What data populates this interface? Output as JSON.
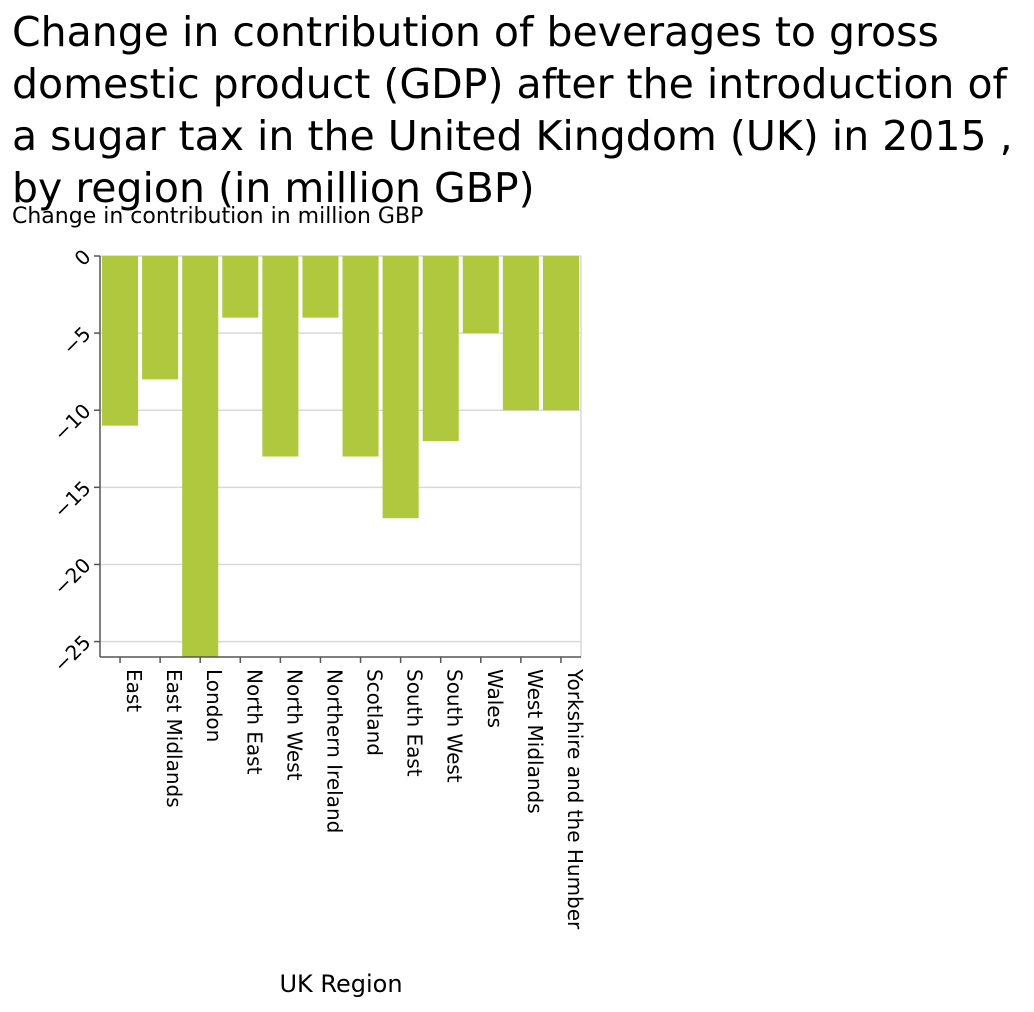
{
  "chart_data": {
    "type": "bar",
    "title": "Change in contribution of beverages to gross domestic product (GDP) after the introduction of a sugar tax in the United Kingdom (UK) in 2015 , by region (in million GBP)",
    "ylabel": "Change in contribution in million GBP",
    "xlabel": "UK Region",
    "categories": [
      "East",
      "East Midlands",
      "London",
      "North East",
      "North West",
      "Northern Ireland",
      "Scotland",
      "South East",
      "South West",
      "Wales",
      "West Midlands",
      "Yorkshire and the Humber"
    ],
    "values": [
      -11,
      -8,
      -26,
      -4,
      -13,
      -4,
      -13,
      -17,
      -12,
      -5,
      -10,
      -10
    ],
    "ylim": [
      -26,
      0
    ],
    "yticks": [
      0,
      -5,
      -10,
      -15,
      -20,
      -25
    ],
    "ytick_labels": [
      "0",
      "−5",
      "−10",
      "−15",
      "−20",
      "−25"
    ],
    "grid": true,
    "bar_color": "#b0c83e"
  }
}
